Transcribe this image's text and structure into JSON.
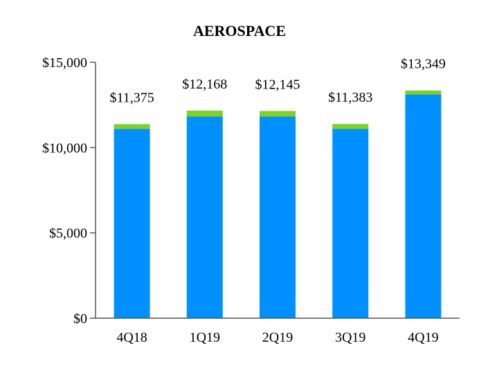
{
  "chart_data": {
    "type": "bar",
    "title": "AEROSPACE",
    "xlabel": "",
    "ylabel": "",
    "categories": [
      "4Q18",
      "1Q19",
      "2Q19",
      "3Q19",
      "4Q19"
    ],
    "series": [
      {
        "values": [
          11100,
          11820,
          11820,
          11100,
          13120
        ]
      },
      {
        "values": [
          275,
          348,
          325,
          283,
          229
        ]
      }
    ],
    "data_labels": [
      "$11,375",
      "$12,168",
      "$12,145",
      "$11,383",
      "$13,349"
    ],
    "ylim": [
      0,
      15000
    ],
    "y_ticks": [
      0,
      5000,
      10000,
      15000
    ],
    "y_tick_labels": [
      "$0",
      "$5,000",
      "$10,000",
      "$15,000"
    ],
    "grid": false,
    "legend": "none",
    "colors": {
      "base": "#0090ff",
      "top": "#7ed321",
      "axis": "#555555"
    }
  }
}
